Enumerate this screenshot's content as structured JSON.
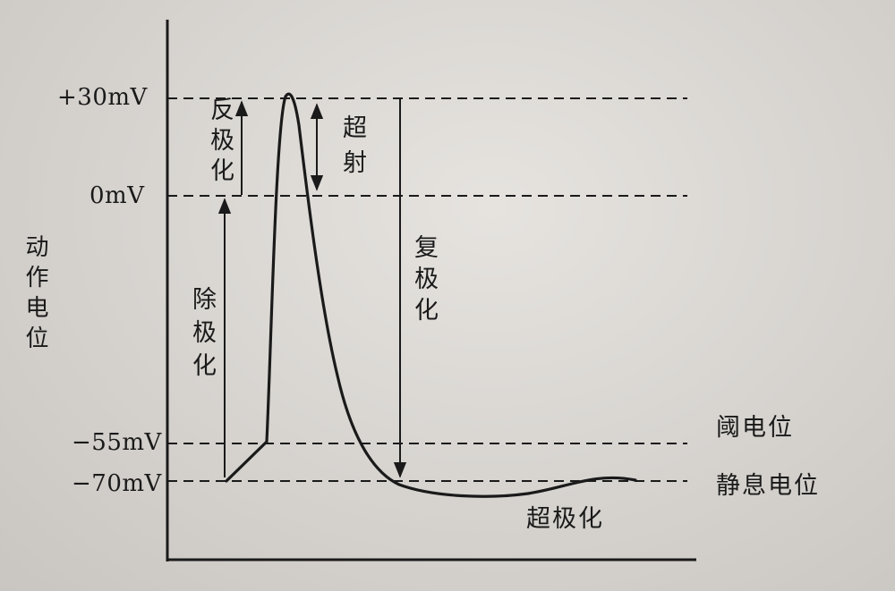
{
  "y_axis_label": "动作电位",
  "ticks": {
    "plus30": "+30mV",
    "zero": "0mV",
    "minus55": "−55mV",
    "minus70": "−70mV"
  },
  "phases": {
    "depolarization": "除极化",
    "reverse_polarization": "反极化",
    "overshoot": "超射",
    "repolarization": "复极化",
    "hyperpolarization": "超极化"
  },
  "levels": {
    "threshold": "阈电位",
    "resting": "静息电位"
  }
}
